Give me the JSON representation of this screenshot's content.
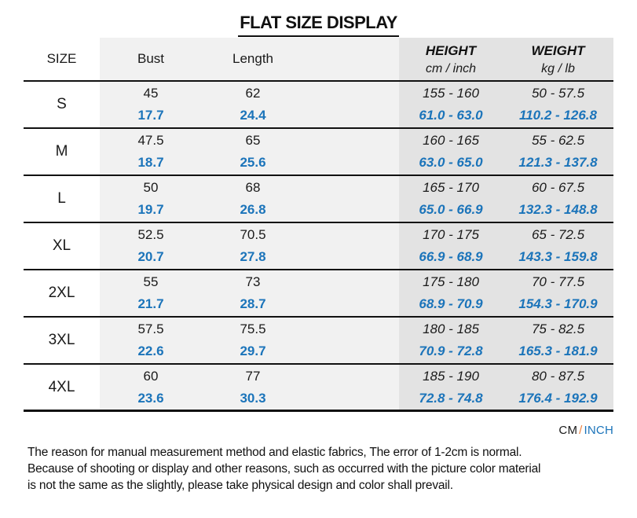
{
  "title": "FLAT SIZE DISPLAY",
  "colors": {
    "accent_blue": "#1b74ba",
    "slash_orange": "#ec7f3b",
    "light_gray": "#f1f1f1",
    "dark_gray": "#e3e3e3"
  },
  "header": {
    "size": "SIZE",
    "bust": "Bust",
    "length": "Length",
    "height_label": "HEIGHT",
    "height_sub": "cm / inch",
    "weight_label": "WEIGHT",
    "weight_sub": "kg / lb"
  },
  "rows": [
    {
      "size": "S",
      "bust_cm": "45",
      "bust_in": "17.7",
      "len_cm": "62",
      "len_in": "24.4",
      "h_cm": "155 - 160",
      "h_in": "61.0 - 63.0",
      "w_kg": "50 - 57.5",
      "w_lb": "110.2 - 126.8"
    },
    {
      "size": "M",
      "bust_cm": "47.5",
      "bust_in": "18.7",
      "len_cm": "65",
      "len_in": "25.6",
      "h_cm": "160 - 165",
      "h_in": "63.0 - 65.0",
      "w_kg": "55 - 62.5",
      "w_lb": "121.3 - 137.8"
    },
    {
      "size": "L",
      "bust_cm": "50",
      "bust_in": "19.7",
      "len_cm": "68",
      "len_in": "26.8",
      "h_cm": "165 - 170",
      "h_in": "65.0 - 66.9",
      "w_kg": "60 - 67.5",
      "w_lb": "132.3 - 148.8"
    },
    {
      "size": "XL",
      "bust_cm": "52.5",
      "bust_in": "20.7",
      "len_cm": "70.5",
      "len_in": "27.8",
      "h_cm": "170 - 175",
      "h_in": "66.9 - 68.9",
      "w_kg": "65 - 72.5",
      "w_lb": "143.3 - 159.8"
    },
    {
      "size": "2XL",
      "bust_cm": "55",
      "bust_in": "21.7",
      "len_cm": "73",
      "len_in": "28.7",
      "h_cm": "175 - 180",
      "h_in": "68.9 - 70.9",
      "w_kg": "70 - 77.5",
      "w_lb": "154.3 - 170.9"
    },
    {
      "size": "3XL",
      "bust_cm": "57.5",
      "bust_in": "22.6",
      "len_cm": "75.5",
      "len_in": "29.7",
      "h_cm": "180 - 185",
      "h_in": "70.9 - 72.8",
      "w_kg": "75 - 82.5",
      "w_lb": "165.3 - 181.9"
    },
    {
      "size": "4XL",
      "bust_cm": "60",
      "bust_in": "23.6",
      "len_cm": "77",
      "len_in": "30.3",
      "h_cm": "185 - 190",
      "h_in": "72.8 - 74.8",
      "w_kg": "80 - 87.5",
      "w_lb": "176.4 - 192.9"
    }
  ],
  "legend": {
    "cm": "CM",
    "slash": "/",
    "inch": "INCH"
  },
  "footer": {
    "line1": "The reason for manual measurement method and elastic fabrics, The error of 1-2cm is normal.",
    "line2": "Because of shooting or display and other reasons, such as occurred with the picture color material",
    "line3": "is not the same as the slightly, please take physical design and color shall prevail."
  }
}
